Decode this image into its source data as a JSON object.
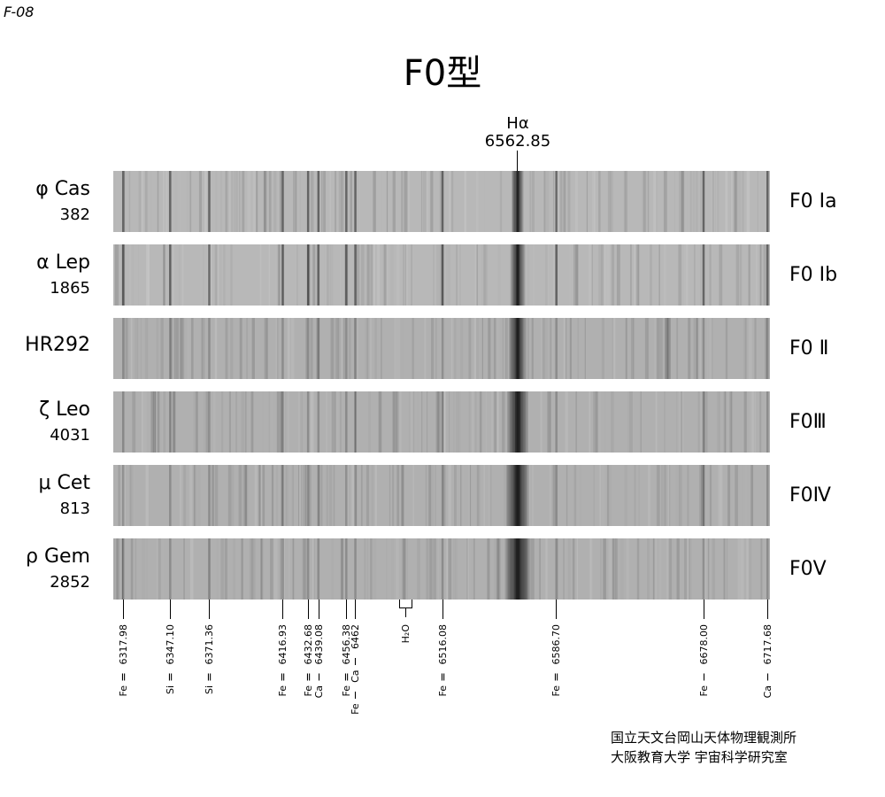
{
  "code": "F-08",
  "title": "F0型",
  "halpha": {
    "label": "Hα",
    "wavelength": "6562.85",
    "value": 6562.85
  },
  "stars": [
    {
      "name": "φ Cas",
      "hr": "382",
      "class": "F0 Ⅰa",
      "h": 0.55,
      "seed": 3
    },
    {
      "name": "α Lep",
      "hr": "1865",
      "class": "F0 Ⅰb",
      "h": 0.7,
      "seed": 7
    },
    {
      "name": "HR292",
      "hr": "",
      "class": "F0 Ⅱ",
      "h": 0.8,
      "seed": 11
    },
    {
      "name": "ζ Leo",
      "hr": "4031",
      "class": "F0Ⅲ",
      "h": 1.0,
      "seed": 19
    },
    {
      "name": "μ Cet",
      "hr": "813",
      "class": "F0Ⅳ",
      "h": 1.1,
      "seed": 23
    },
    {
      "name": "ρ Gem",
      "hr": "2852",
      "class": "F0Ⅴ",
      "h": 1.2,
      "seed": 29
    }
  ],
  "wavelength_range": [
    6312,
    6719
  ],
  "lines": [
    {
      "label": "Fe Ⅱ  6317.98",
      "wl": 6317.98
    },
    {
      "label": "Si Ⅱ  6347.10",
      "wl": 6347.1
    },
    {
      "label": "Si Ⅱ  6371.36",
      "wl": 6371.36
    },
    {
      "label": "Fe Ⅱ  6416.93",
      "wl": 6416.93
    },
    {
      "label": "Fe Ⅱ  6432.68",
      "wl": 6432.68
    },
    {
      "label": "Ca Ⅰ  6439.08",
      "wl": 6439.08
    },
    {
      "label": "Fe Ⅱ  6456.38",
      "wl": 6456.38
    },
    {
      "label": "Fe Ⅰ  Ca Ⅰ  6462",
      "wl": 6462
    },
    {
      "label": "H₂O",
      "wl": 6493
    },
    {
      "label": "Fe Ⅱ  6516.08",
      "wl": 6516.08
    },
    {
      "label": "Fe Ⅱ  6586.70",
      "wl": 6586.7
    },
    {
      "label": "Fe Ⅰ  6678.00",
      "wl": 6678.0
    },
    {
      "label": "Ca Ⅰ  6717.68",
      "wl": 6717.68
    }
  ],
  "credit": [
    "国立天文台岡山天体物理観測所",
    "大阪教育大学 宇宙科学研究室"
  ]
}
